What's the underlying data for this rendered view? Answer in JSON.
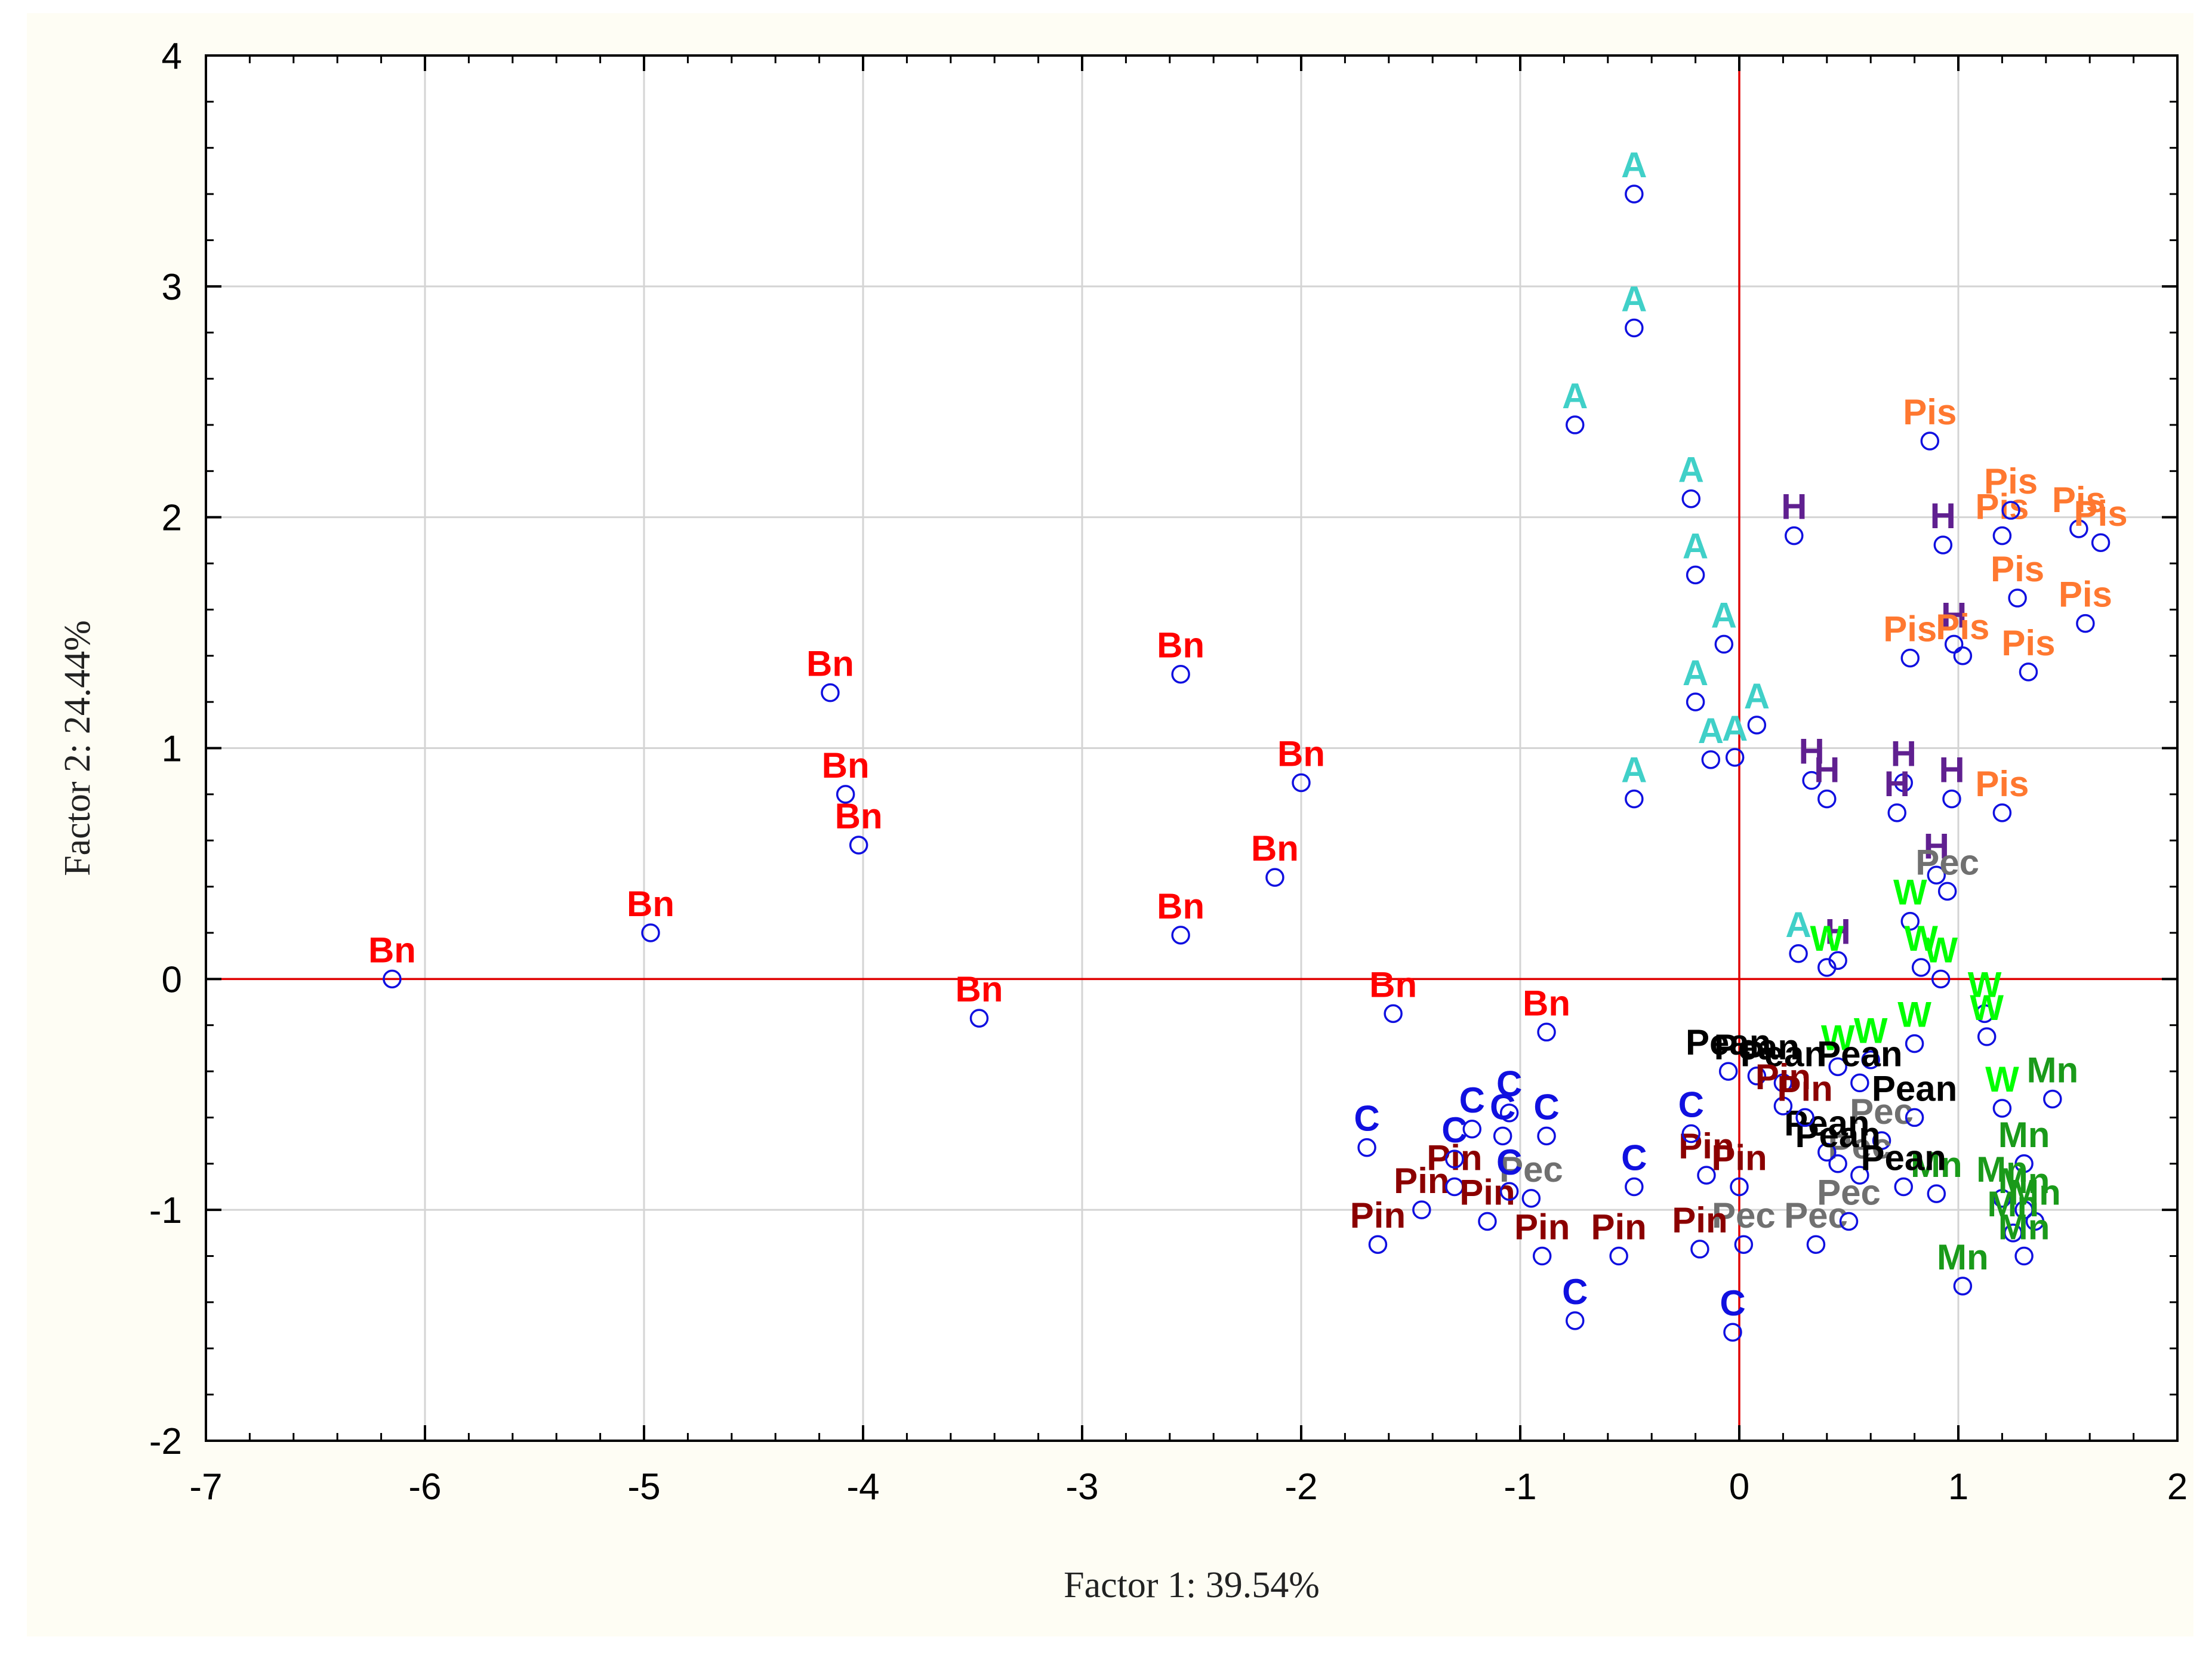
{
  "chart_data": {
    "type": "scatter",
    "xlabel": "Factor 1: 39.54%",
    "ylabel": "Factor 2: 24.44%",
    "xlim": [
      -7,
      2
    ],
    "ylim": [
      -2,
      4
    ],
    "xticks": [
      -7,
      -6,
      -5,
      -4,
      -3,
      -2,
      -1,
      0,
      1,
      2
    ],
    "yticks": [
      -2,
      -1,
      0,
      1,
      2,
      3,
      4
    ],
    "grid": true,
    "reference_lines": {
      "x": 0,
      "y": 0,
      "color": "#e00000"
    },
    "marker": {
      "shape": "open-circle",
      "color": "#1010e0"
    },
    "group_colors": {
      "Bn": "#ff0000",
      "A": "#40d0c8",
      "H": "#602090",
      "Pis": "#ff7830",
      "Pec": "#707070",
      "W": "#00ff00",
      "Mn": "#1a9a1a",
      "Pean": "#000000",
      "Pin": "#8b0000",
      "C": "#1010e0"
    },
    "points": [
      {
        "label": "Bn",
        "x": -6.15,
        "y": 0.0
      },
      {
        "label": "Bn",
        "x": -4.97,
        "y": 0.2
      },
      {
        "label": "Bn",
        "x": -4.15,
        "y": 1.24
      },
      {
        "label": "Bn",
        "x": -4.08,
        "y": 0.8
      },
      {
        "label": "Bn",
        "x": -4.02,
        "y": 0.58
      },
      {
        "label": "Bn",
        "x": -3.47,
        "y": -0.17
      },
      {
        "label": "Bn",
        "x": -2.55,
        "y": 1.32
      },
      {
        "label": "Bn",
        "x": -2.55,
        "y": 0.19
      },
      {
        "label": "Bn",
        "x": -2.0,
        "y": 0.85
      },
      {
        "label": "Bn",
        "x": -2.12,
        "y": 0.44
      },
      {
        "label": "Bn",
        "x": -1.58,
        "y": -0.15
      },
      {
        "label": "Bn",
        "x": -0.88,
        "y": -0.23
      },
      {
        "label": "A",
        "x": -0.48,
        "y": 3.4
      },
      {
        "label": "A",
        "x": -0.48,
        "y": 2.82
      },
      {
        "label": "A",
        "x": -0.75,
        "y": 2.4
      },
      {
        "label": "A",
        "x": -0.22,
        "y": 2.08
      },
      {
        "label": "A",
        "x": -0.2,
        "y": 1.75
      },
      {
        "label": "A",
        "x": -0.07,
        "y": 1.45
      },
      {
        "label": "A",
        "x": -0.2,
        "y": 1.2
      },
      {
        "label": "A",
        "x": 0.08,
        "y": 1.1
      },
      {
        "label": "A",
        "x": -0.13,
        "y": 0.95
      },
      {
        "label": "A",
        "x": -0.02,
        "y": 0.96
      },
      {
        "label": "A",
        "x": -0.48,
        "y": 0.78
      },
      {
        "label": "A",
        "x": 0.27,
        "y": 0.11
      },
      {
        "label": "H",
        "x": 0.25,
        "y": 1.92
      },
      {
        "label": "H",
        "x": 0.93,
        "y": 1.88
      },
      {
        "label": "H",
        "x": 0.33,
        "y": 0.86
      },
      {
        "label": "H",
        "x": 0.4,
        "y": 0.78
      },
      {
        "label": "H",
        "x": 0.75,
        "y": 0.85
      },
      {
        "label": "H",
        "x": 0.72,
        "y": 0.72
      },
      {
        "label": "H",
        "x": 0.97,
        "y": 0.78
      },
      {
        "label": "H",
        "x": 0.9,
        "y": 0.45
      },
      {
        "label": "H",
        "x": 0.45,
        "y": 0.08
      },
      {
        "label": "H",
        "x": 0.98,
        "y": 1.45
      },
      {
        "label": "Pis",
        "x": 0.87,
        "y": 2.33
      },
      {
        "label": "Pis",
        "x": 1.2,
        "y": 1.92
      },
      {
        "label": "Pis",
        "x": 1.24,
        "y": 2.03
      },
      {
        "label": "Pis",
        "x": 1.55,
        "y": 1.95
      },
      {
        "label": "Pis",
        "x": 1.65,
        "y": 1.89
      },
      {
        "label": "Pis",
        "x": 1.27,
        "y": 1.65
      },
      {
        "label": "Pis",
        "x": 1.58,
        "y": 1.54
      },
      {
        "label": "Pis",
        "x": 0.78,
        "y": 1.39
      },
      {
        "label": "Pis",
        "x": 1.02,
        "y": 1.4
      },
      {
        "label": "Pis",
        "x": 1.32,
        "y": 1.33
      },
      {
        "label": "Pis",
        "x": 1.2,
        "y": 0.72
      },
      {
        "label": "Pec",
        "x": 0.95,
        "y": 0.38
      },
      {
        "label": "Pec",
        "x": -0.95,
        "y": -0.95
      },
      {
        "label": "Pec",
        "x": 0.02,
        "y": -1.15
      },
      {
        "label": "Pec",
        "x": 0.35,
        "y": -1.15
      },
      {
        "label": "Pec",
        "x": 0.5,
        "y": -1.05
      },
      {
        "label": "Pec",
        "x": 0.65,
        "y": -0.7
      },
      {
        "label": "Pec",
        "x": 0.55,
        "y": -0.85
      },
      {
        "label": "W",
        "x": 0.4,
        "y": 0.05
      },
      {
        "label": "W",
        "x": 0.78,
        "y": 0.25
      },
      {
        "label": "W",
        "x": 0.83,
        "y": 0.05
      },
      {
        "label": "W",
        "x": 0.92,
        "y": 0.0
      },
      {
        "label": "W",
        "x": 1.12,
        "y": -0.15
      },
      {
        "label": "W",
        "x": 0.8,
        "y": -0.28
      },
      {
        "label": "W",
        "x": 0.6,
        "y": -0.35
      },
      {
        "label": "W",
        "x": 0.45,
        "y": -0.38
      },
      {
        "label": "W",
        "x": 1.13,
        "y": -0.25
      },
      {
        "label": "W",
        "x": 1.2,
        "y": -0.56
      },
      {
        "label": "Mn",
        "x": 1.43,
        "y": -0.52
      },
      {
        "label": "Mn",
        "x": 1.3,
        "y": -0.8
      },
      {
        "label": "Mn",
        "x": 0.9,
        "y": -0.93
      },
      {
        "label": "Mn",
        "x": 1.2,
        "y": -0.95
      },
      {
        "label": "Mn",
        "x": 1.3,
        "y": -1.0
      },
      {
        "label": "Mn",
        "x": 1.35,
        "y": -1.05
      },
      {
        "label": "Mn",
        "x": 1.25,
        "y": -1.1
      },
      {
        "label": "Mn",
        "x": 1.3,
        "y": -1.2
      },
      {
        "label": "Mn",
        "x": 1.02,
        "y": -1.33
      },
      {
        "label": "Pean",
        "x": -0.05,
        "y": -0.4
      },
      {
        "label": "Pean",
        "x": 0.08,
        "y": -0.42
      },
      {
        "label": "Pean",
        "x": 0.2,
        "y": -0.45
      },
      {
        "label": "Pean",
        "x": 0.55,
        "y": -0.45
      },
      {
        "label": "Pean",
        "x": 0.8,
        "y": -0.6
      },
      {
        "label": "Pean",
        "x": 0.4,
        "y": -0.75
      },
      {
        "label": "Pean",
        "x": 0.45,
        "y": -0.8
      },
      {
        "label": "Pean",
        "x": 0.75,
        "y": -0.9
      },
      {
        "label": "Pin",
        "x": -1.65,
        "y": -1.15
      },
      {
        "label": "Pin",
        "x": -1.45,
        "y": -1.0
      },
      {
        "label": "Pin",
        "x": -1.3,
        "y": -0.9
      },
      {
        "label": "Pin",
        "x": -1.15,
        "y": -1.05
      },
      {
        "label": "Pin",
        "x": -0.9,
        "y": -1.2
      },
      {
        "label": "Pin",
        "x": -0.55,
        "y": -1.2
      },
      {
        "label": "Pin",
        "x": -0.18,
        "y": -1.17
      },
      {
        "label": "Pin",
        "x": -0.15,
        "y": -0.85
      },
      {
        "label": "Pin",
        "x": 0.0,
        "y": -0.9
      },
      {
        "label": "Pin",
        "x": 0.2,
        "y": -0.55
      },
      {
        "label": "Pin",
        "x": 0.3,
        "y": -0.6
      },
      {
        "label": "C",
        "x": -1.7,
        "y": -0.73
      },
      {
        "label": "C",
        "x": -1.3,
        "y": -0.78
      },
      {
        "label": "C",
        "x": -1.22,
        "y": -0.65
      },
      {
        "label": "C",
        "x": -1.08,
        "y": -0.68
      },
      {
        "label": "C",
        "x": -1.05,
        "y": -0.58
      },
      {
        "label": "C",
        "x": -0.88,
        "y": -0.68
      },
      {
        "label": "C",
        "x": -1.05,
        "y": -0.92
      },
      {
        "label": "C",
        "x": -0.48,
        "y": -0.9
      },
      {
        "label": "C",
        "x": -0.22,
        "y": -0.67
      },
      {
        "label": "C",
        "x": -0.75,
        "y": -1.48
      },
      {
        "label": "C",
        "x": -0.03,
        "y": -1.53
      }
    ]
  }
}
